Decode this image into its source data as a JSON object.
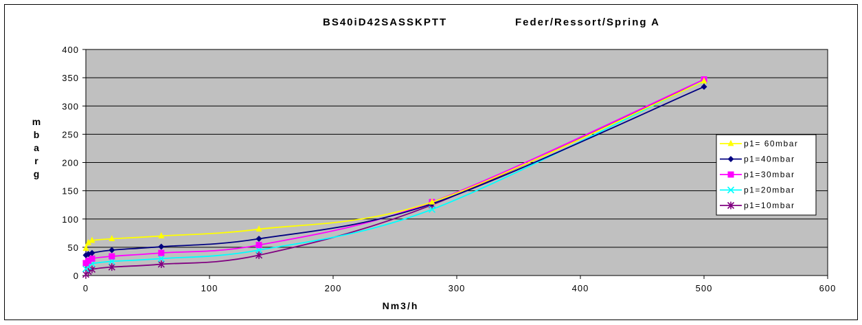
{
  "chart_data": {
    "type": "line",
    "title_left": "BS40iD42SASSKPTT",
    "title_right": "Feder/Ressort/Spring A",
    "xlabel": "Nm3/h",
    "ylabel": "mbarg",
    "xlim": [
      0,
      600
    ],
    "ylim": [
      0,
      400
    ],
    "xticks": [
      0,
      100,
      200,
      300,
      400,
      500,
      600
    ],
    "yticks": [
      0,
      50,
      100,
      150,
      200,
      250,
      300,
      350,
      400
    ],
    "grid": "horizontal",
    "plot_background": "#c0c0c0",
    "legend_position": "right",
    "series": [
      {
        "name": "p1= 60mbar",
        "color": "#ffff00",
        "marker": "triangle",
        "points": [
          [
            0,
            48
          ],
          [
            2,
            58
          ],
          [
            5,
            62
          ],
          [
            21,
            65
          ],
          [
            61,
            70
          ],
          [
            140,
            82
          ],
          [
            280,
            130
          ],
          [
            500,
            344
          ]
        ]
      },
      {
        "name": "p1=40mbar",
        "color": "#000080",
        "marker": "diamond",
        "points": [
          [
            0,
            36
          ],
          [
            2,
            38
          ],
          [
            5,
            40
          ],
          [
            21,
            45
          ],
          [
            61,
            51
          ],
          [
            140,
            65
          ],
          [
            280,
            127
          ],
          [
            500,
            334
          ]
        ]
      },
      {
        "name": "p1=30mbar",
        "color": "#ff00ff",
        "marker": "square",
        "points": [
          [
            0,
            22
          ],
          [
            2,
            26
          ],
          [
            5,
            30
          ],
          [
            21,
            34
          ],
          [
            61,
            40
          ],
          [
            140,
            54
          ],
          [
            280,
            130
          ],
          [
            500,
            347
          ]
        ]
      },
      {
        "name": "p1=20mbar",
        "color": "#00ffff",
        "marker": "x",
        "points": [
          [
            0,
            12
          ],
          [
            2,
            16
          ],
          [
            5,
            21
          ],
          [
            21,
            25
          ],
          [
            61,
            30
          ],
          [
            140,
            45
          ],
          [
            280,
            117
          ],
          [
            500,
            345
          ]
        ]
      },
      {
        "name": "p1=10mbar",
        "color": "#800080",
        "marker": "star",
        "points": [
          [
            0,
            2
          ],
          [
            2,
            7
          ],
          [
            5,
            11
          ],
          [
            21,
            15
          ],
          [
            61,
            20
          ],
          [
            140,
            36
          ],
          [
            280,
            125
          ],
          [
            500,
            345
          ]
        ]
      }
    ]
  }
}
